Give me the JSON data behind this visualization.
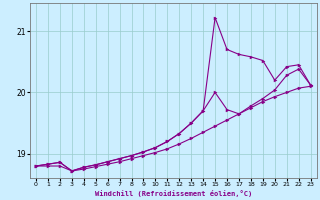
{
  "xlabel": "Windchill (Refroidissement éolien,°C)",
  "background_color": "#cceeff",
  "grid_color": "#99cccc",
  "line_color": "#880088",
  "xlim": [
    -0.5,
    23.5
  ],
  "ylim": [
    18.6,
    21.45
  ],
  "yticks": [
    19,
    20,
    21
  ],
  "xticks": [
    0,
    1,
    2,
    3,
    4,
    5,
    6,
    7,
    8,
    9,
    10,
    11,
    12,
    13,
    14,
    15,
    16,
    17,
    18,
    19,
    20,
    21,
    22,
    23
  ],
  "x_all": [
    0,
    1,
    2,
    3,
    4,
    5,
    6,
    7,
    8,
    9,
    10,
    11,
    12,
    13,
    14,
    15,
    16,
    17,
    18,
    19,
    20,
    21,
    22,
    23
  ],
  "y_top": [
    18.8,
    18.83,
    18.86,
    18.72,
    18.78,
    18.82,
    18.87,
    18.92,
    18.97,
    19.03,
    19.1,
    19.2,
    19.33,
    19.5,
    19.7,
    21.22,
    20.7,
    20.62,
    20.58,
    20.52,
    20.2,
    20.42,
    20.45,
    20.12
  ],
  "y_mid": [
    18.8,
    18.83,
    18.86,
    18.72,
    18.78,
    18.82,
    18.87,
    18.92,
    18.97,
    19.03,
    19.1,
    19.2,
    19.33,
    19.5,
    19.7,
    20.0,
    19.72,
    19.65,
    19.78,
    19.9,
    20.04,
    20.28,
    20.38,
    20.12
  ],
  "y_bot": [
    18.8,
    18.8,
    18.8,
    18.72,
    18.75,
    18.79,
    18.83,
    18.87,
    18.92,
    18.97,
    19.02,
    19.08,
    19.16,
    19.25,
    19.35,
    19.45,
    19.55,
    19.65,
    19.75,
    19.85,
    19.93,
    20.0,
    20.07,
    20.1
  ]
}
